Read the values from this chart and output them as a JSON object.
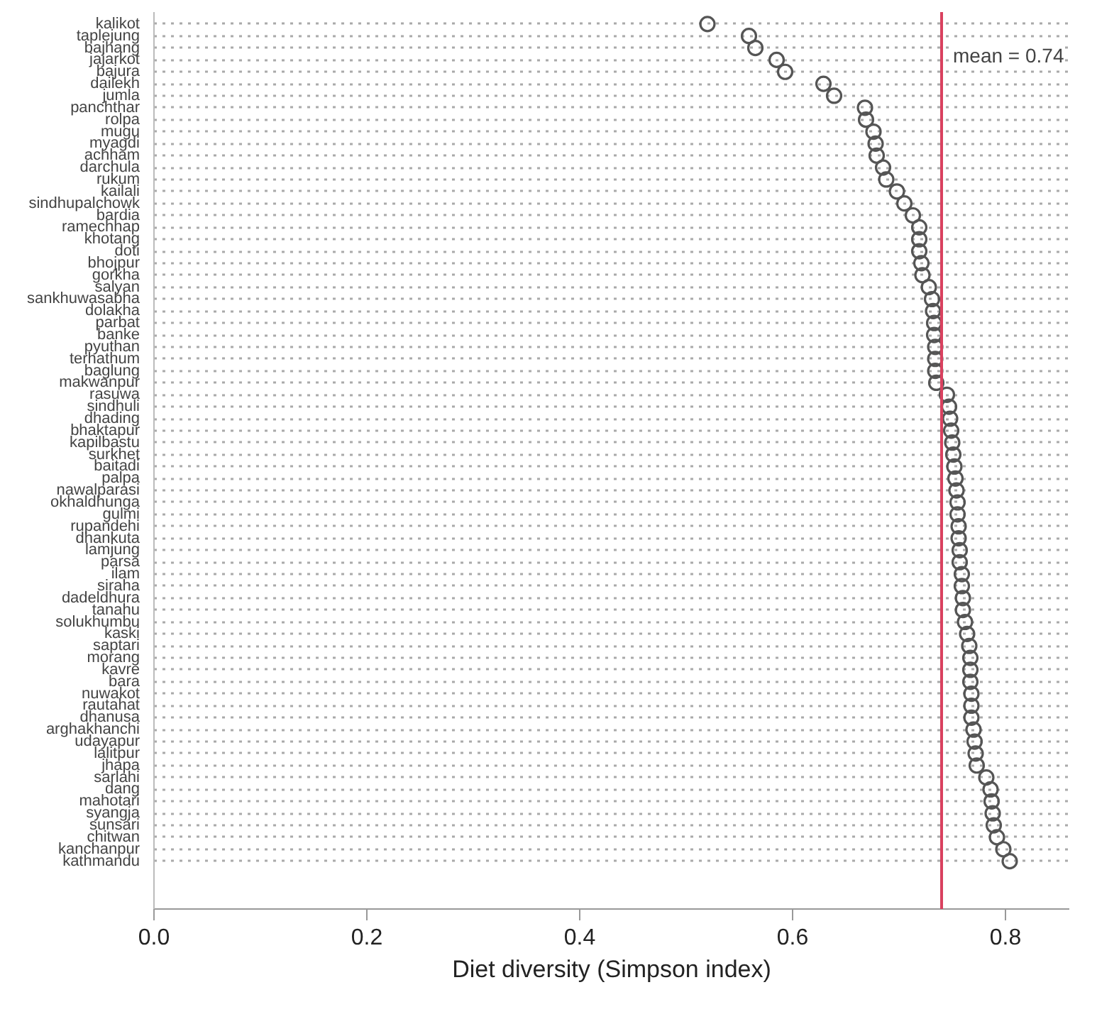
{
  "chart_data": {
    "type": "scatter",
    "xlabel": "Diet diversity (Simpson index)",
    "categories": [
      "kalikot",
      "taplejung",
      "bajhang",
      "jajarkot",
      "bajura",
      "dailekh",
      "jumla",
      "panchthar",
      "rolpa",
      "mugu",
      "myagdi",
      "achham",
      "darchula",
      "rukum",
      "kailali",
      "sindhupalchowk",
      "bardia",
      "ramechhap",
      "khotang",
      "doti",
      "bhojpur",
      "gorkha",
      "salyan",
      "sankhuwasabha",
      "dolakha",
      "parbat",
      "banke",
      "pyuthan",
      "terhathum",
      "baglung",
      "makwanpur",
      "rasuwa",
      "sindhuli",
      "dhading",
      "bhaktapur",
      "kapilbastu",
      "surkhet",
      "baitadi",
      "palpa",
      "nawalparasi",
      "okhaldhunga",
      "gulmi",
      "rupandehi",
      "dhankuta",
      "lamjung",
      "parsa",
      "ilam",
      "siraha",
      "dadeldhura",
      "tanahu",
      "solukhumbu",
      "kaski",
      "saptari",
      "morang",
      "kavre",
      "bara",
      "nuwakot",
      "rautahat",
      "dhanusa",
      "arghakhanchi",
      "udayapur",
      "lalitpur",
      "jhapa",
      "sarlahi",
      "dang",
      "mahotari",
      "syangja",
      "sunsari",
      "chitwan",
      "kanchanpur",
      "kathmandu"
    ],
    "values": [
      0.52,
      0.559,
      0.565,
      0.585,
      0.593,
      0.629,
      0.639,
      0.668,
      0.669,
      0.676,
      0.678,
      0.679,
      0.685,
      0.688,
      0.698,
      0.705,
      0.713,
      0.719,
      0.719,
      0.719,
      0.721,
      0.722,
      0.728,
      0.731,
      0.732,
      0.733,
      0.733,
      0.734,
      0.734,
      0.734,
      0.735,
      0.745,
      0.747,
      0.748,
      0.749,
      0.75,
      0.751,
      0.752,
      0.753,
      0.754,
      0.755,
      0.755,
      0.756,
      0.756,
      0.757,
      0.757,
      0.759,
      0.759,
      0.76,
      0.76,
      0.762,
      0.764,
      0.766,
      0.767,
      0.767,
      0.767,
      0.768,
      0.768,
      0.768,
      0.77,
      0.771,
      0.772,
      0.773,
      0.782,
      0.786,
      0.787,
      0.788,
      0.789,
      0.792,
      0.798,
      0.804
    ],
    "color": "#555555",
    "marker": "circle",
    "grid": "y",
    "orientation": "horizontal",
    "xlim": [
      0,
      0.86
    ],
    "xticks": [
      {
        "value": 0,
        "label": "0.0"
      },
      {
        "value": 0.2,
        "label": "0.2"
      },
      {
        "value": 0.4,
        "label": "0.4"
      },
      {
        "value": 0.6,
        "label": "0.6"
      },
      {
        "value": 0.8,
        "label": "0.8"
      }
    ],
    "ref_lines": [
      {
        "axis": "x",
        "value": 0.74,
        "label": "mean = 0.74",
        "color": "#d9415f"
      }
    ]
  }
}
